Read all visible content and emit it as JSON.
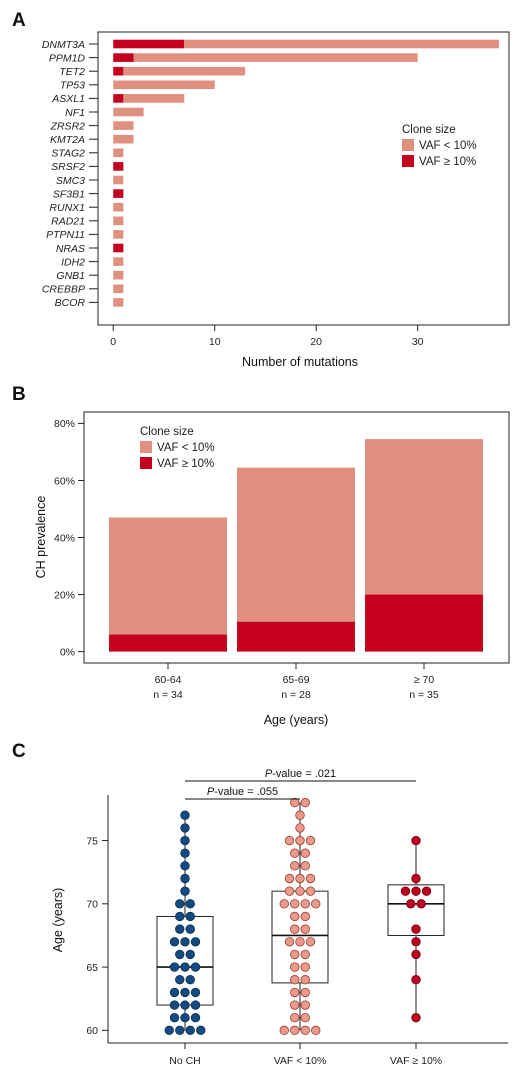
{
  "colors": {
    "vaf_low": "#e0907f",
    "vaf_high": "#c4001e",
    "no_ch": "#134b80",
    "no_ch_edge": "#0b2f55",
    "low_dot": "#ea9a8c",
    "low_dot_edge": "#9b3a2c",
    "high_dot": "#c00020",
    "high_dot_edge": "#6d0012"
  },
  "legend": {
    "title": "Clone size",
    "low": "VAF < 10%",
    "high": "VAF ≥ 10%"
  },
  "chart_data": [
    {
      "panel": "A",
      "type": "bar",
      "orientation": "horizontal",
      "stacked": true,
      "categories": [
        "DNMT3A",
        "PPM1D",
        "TET2",
        "TP53",
        "ASXL1",
        "NF1",
        "ZRSR2",
        "KMT2A",
        "STAG2",
        "SRSF2",
        "SMC3",
        "SF3B1",
        "RUNX1",
        "RAD21",
        "PTPN11",
        "NRAS",
        "IDH2",
        "GNB1",
        "CREBBP",
        "BCOR"
      ],
      "series": [
        {
          "name": "VAF ≥ 10%",
          "values": [
            7,
            2,
            1,
            0,
            1,
            0,
            0,
            0,
            0,
            1,
            0,
            1,
            0,
            0,
            0,
            1,
            0,
            0,
            0,
            0
          ]
        },
        {
          "name": "VAF < 10%",
          "values": [
            31,
            28,
            12,
            10,
            6,
            3,
            2,
            2,
            1,
            0,
            1,
            0,
            1,
            1,
            1,
            0,
            1,
            1,
            1,
            1
          ]
        }
      ],
      "xlabel": "Number of mutations",
      "xlim": [
        -1.5,
        39
      ],
      "xticks": [
        0,
        10,
        20,
        30
      ],
      "legend_position": "right"
    },
    {
      "panel": "B",
      "type": "bar",
      "stacked": true,
      "categories": [
        "60-64",
        "65-69",
        "≥ 70"
      ],
      "category_counts": [
        "n = 34",
        "n = 28",
        "n = 35"
      ],
      "series": [
        {
          "name": "VAF ≥ 10%",
          "values": [
            6,
            10.5,
            20
          ]
        },
        {
          "name": "VAF < 10%",
          "values": [
            41,
            54,
            54.5
          ]
        }
      ],
      "xlabel": "Age (years)",
      "ylabel": "CH prevalence",
      "ylim": [
        -4,
        84
      ],
      "yticks": [
        0,
        20,
        40,
        60,
        80
      ],
      "ytick_labels": [
        "0%",
        "20%",
        "40%",
        "60%",
        "80%"
      ],
      "legend_position": "top-left"
    },
    {
      "panel": "C",
      "type": "scatter",
      "subtype": "box-plot-with-points",
      "categories": [
        "No CH",
        "VAF < 10%",
        "VAF ≥ 10%"
      ],
      "ylabel": "Age (years)",
      "ylim": [
        59,
        78.6
      ],
      "yticks": [
        60,
        65,
        70,
        75
      ],
      "boxes": [
        {
          "q1": 62,
          "median": 65,
          "q3": 69,
          "min": 60,
          "max": 77
        },
        {
          "q1": 63.75,
          "median": 67.5,
          "q3": 71,
          "min": 60,
          "max": 78
        },
        {
          "q1": 67.5,
          "median": 70,
          "q3": 71.5,
          "min": 61,
          "max": 75
        }
      ],
      "points": [
        [
          60,
          60,
          60,
          60,
          61,
          61,
          61,
          62,
          62,
          62,
          63,
          63,
          63,
          64,
          64,
          65,
          65,
          65,
          66,
          66,
          67,
          67,
          67,
          68,
          68,
          69,
          69,
          70,
          70,
          71,
          72,
          73,
          74,
          75,
          76,
          77
        ],
        [
          60,
          60,
          60,
          60,
          61,
          61,
          62,
          62,
          63,
          63,
          64,
          64,
          65,
          65,
          66,
          66,
          67,
          67,
          67,
          68,
          68,
          69,
          69,
          70,
          70,
          70,
          70,
          71,
          71,
          71,
          72,
          72,
          72,
          73,
          73,
          74,
          74,
          75,
          75,
          75,
          76,
          77,
          78,
          78
        ],
        [
          61,
          64,
          66,
          67,
          68,
          70,
          70,
          71,
          71,
          71,
          72,
          75
        ]
      ],
      "pvalues": [
        {
          "label": "P-value = .055",
          "from": 0,
          "to": 1
        },
        {
          "label": "P-value = .021",
          "from": 0,
          "to": 2
        }
      ]
    }
  ]
}
